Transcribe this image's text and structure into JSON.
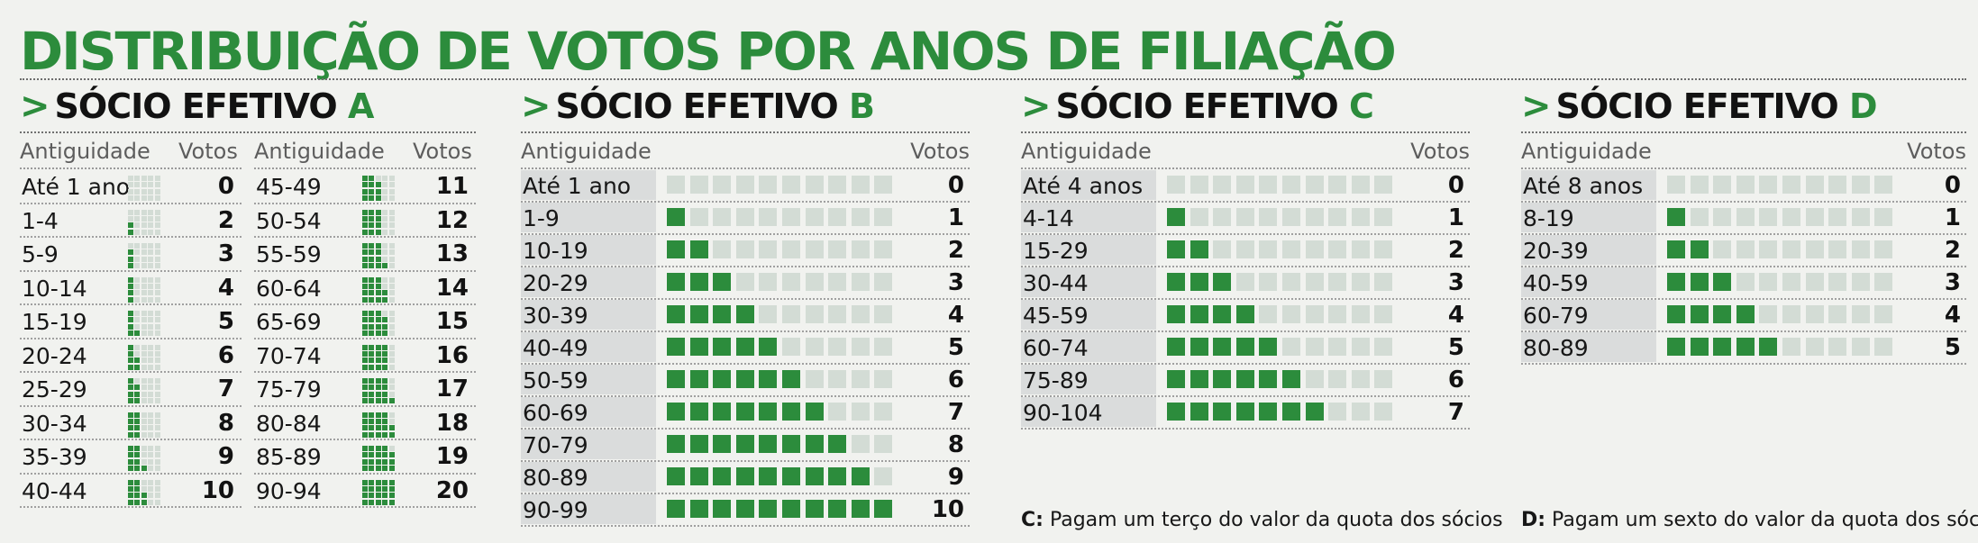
{
  "title": "DISTRIBUIÇÃO DE VOTOS POR ANOS DE FILIAÇÃO",
  "colors": {
    "green": "#2c8c3c",
    "light_square": "#d3dcd5",
    "row_band": "#dadcdc"
  },
  "chart_data": [
    {
      "type": "table",
      "panel": "A",
      "title_prefix": "SÓCIO EFETIVO",
      "title_letter": "A",
      "col_label": "Antiguidade",
      "col_votes": "Votos",
      "rows": [
        {
          "label": "Até 1 ano",
          "votes": "0"
        },
        {
          "label": "1-4",
          "votes": "2"
        },
        {
          "label": "5-9",
          "votes": "3"
        },
        {
          "label": "10-14",
          "votes": "4"
        },
        {
          "label": "15-19",
          "votes": "5"
        },
        {
          "label": "20-24",
          "votes": "6"
        },
        {
          "label": "25-29",
          "votes": "7"
        },
        {
          "label": "30-34",
          "votes": "8"
        },
        {
          "label": "35-39",
          "votes": "9"
        },
        {
          "label": "40-44",
          "votes": "10"
        },
        {
          "label": "45-49",
          "votes": "11"
        },
        {
          "label": "50-54",
          "votes": "12"
        },
        {
          "label": "55-59",
          "votes": "13"
        },
        {
          "label": "60-64",
          "votes": "14"
        },
        {
          "label": "65-69",
          "votes": "15"
        },
        {
          "label": "70-74",
          "votes": "16"
        },
        {
          "label": "75-79",
          "votes": "17"
        },
        {
          "label": "80-84",
          "votes": "18"
        },
        {
          "label": "85-89",
          "votes": "19"
        },
        {
          "label": "90-94",
          "votes": "20"
        }
      ]
    },
    {
      "type": "table",
      "panel": "B",
      "title_prefix": "SÓCIO EFETIVO",
      "title_letter": "B",
      "col_label": "Antiguidade",
      "col_votes": "Votos",
      "max_votes": 10,
      "rows": [
        {
          "label": "Até 1 ano",
          "votes": "0"
        },
        {
          "label": "1-9",
          "votes": "1"
        },
        {
          "label": "10-19",
          "votes": "2"
        },
        {
          "label": "20-29",
          "votes": "3"
        },
        {
          "label": "30-39",
          "votes": "4"
        },
        {
          "label": "40-49",
          "votes": "5"
        },
        {
          "label": "50-59",
          "votes": "6"
        },
        {
          "label": "60-69",
          "votes": "7"
        },
        {
          "label": "70-79",
          "votes": "8"
        },
        {
          "label": "80-89",
          "votes": "9"
        },
        {
          "label": "90-99",
          "votes": "10"
        }
      ]
    },
    {
      "type": "table",
      "panel": "C",
      "title_prefix": "SÓCIO EFETIVO",
      "title_letter": "C",
      "col_label": "Antiguidade",
      "col_votes": "Votos",
      "max_votes": 10,
      "rows": [
        {
          "label": "Até 4 anos",
          "votes": "0"
        },
        {
          "label": "4-14",
          "votes": "1"
        },
        {
          "label": "15-29",
          "votes": "2"
        },
        {
          "label": "30-44",
          "votes": "3"
        },
        {
          "label": "45-59",
          "votes": "4"
        },
        {
          "label": "60-74",
          "votes": "5"
        },
        {
          "label": "75-89",
          "votes": "6"
        },
        {
          "label": "90-104",
          "votes": "7"
        }
      ],
      "note_letter": "C:",
      "note_text": " Pagam um terço do valor da quota dos sócios"
    },
    {
      "type": "table",
      "panel": "D",
      "title_prefix": "SÓCIO EFETIVO",
      "title_letter": "D",
      "col_label": "Antiguidade",
      "col_votes": "Votos",
      "max_votes": 10,
      "rows": [
        {
          "label": "Até 8 anos",
          "votes": "0"
        },
        {
          "label": "8-19",
          "votes": "1"
        },
        {
          "label": "20-39",
          "votes": "2"
        },
        {
          "label": "40-59",
          "votes": "3"
        },
        {
          "label": "60-79",
          "votes": "4"
        },
        {
          "label": "80-89",
          "votes": "5"
        }
      ],
      "note_letter": "D:",
      "note_text": " Pagam um sexto do valor da quota dos sócios"
    }
  ]
}
